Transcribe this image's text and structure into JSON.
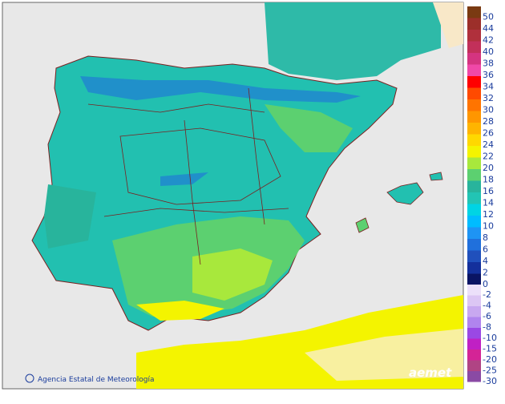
{
  "map": {
    "footer": "Agencia Estatal de Meteorología",
    "logo": "aemet",
    "legend_upper": [
      {
        "value": 50,
        "color": "#7a3a12"
      },
      {
        "value": 44,
        "color": "#9c2f2a"
      },
      {
        "value": 42,
        "color": "#b0303c"
      },
      {
        "value": 40,
        "color": "#c2305a"
      },
      {
        "value": 38,
        "color": "#d43480"
      },
      {
        "value": 36,
        "color": "#f048a8"
      },
      {
        "value": 34,
        "color": "#ff0000"
      },
      {
        "value": 32,
        "color": "#ff4a00"
      },
      {
        "value": 30,
        "color": "#ff7400"
      },
      {
        "value": 28,
        "color": "#ff9600"
      },
      {
        "value": 26,
        "color": "#ffb400"
      },
      {
        "value": 24,
        "color": "#ffd800"
      },
      {
        "value": 22,
        "color": "#f4f400"
      },
      {
        "value": 20,
        "color": "#a8e83c"
      },
      {
        "value": 18,
        "color": "#5cd070"
      },
      {
        "value": 16,
        "color": "#28b49c"
      },
      {
        "value": 14,
        "color": "#22c4b4"
      },
      {
        "value": 12,
        "color": "#00d4e4"
      },
      {
        "value": 10,
        "color": "#00bcff"
      },
      {
        "value": 8,
        "color": "#1e94f4"
      },
      {
        "value": 6,
        "color": "#2070dc"
      },
      {
        "value": 4,
        "color": "#2050bc"
      },
      {
        "value": 2,
        "color": "#14309c"
      },
      {
        "value": 0,
        "color": "#0a1464"
      }
    ],
    "legend_lower": [
      {
        "value": -2,
        "color": "#ece0fa"
      },
      {
        "value": -4,
        "color": "#dcc6f4"
      },
      {
        "value": -6,
        "color": "#c8a8f0"
      },
      {
        "value": -8,
        "color": "#b084ee"
      },
      {
        "value": -10,
        "color": "#9a48e4"
      },
      {
        "value": -15,
        "color": "#c020c4"
      },
      {
        "value": -20,
        "color": "#d42496"
      },
      {
        "value": -25,
        "color": "#b04484"
      },
      {
        "value": -30,
        "color": "#8a4aa4"
      }
    ]
  }
}
